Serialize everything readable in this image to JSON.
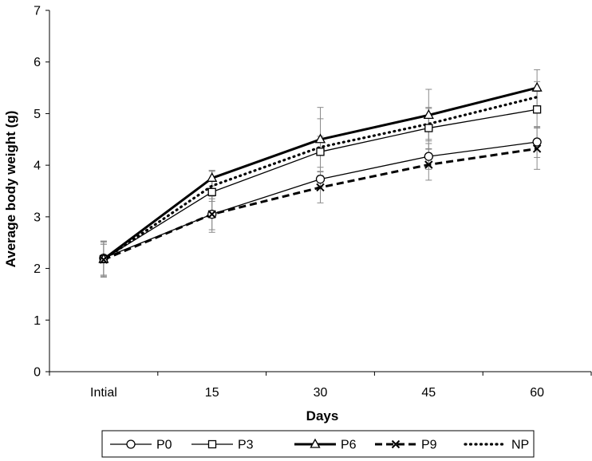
{
  "chart_data": {
    "type": "line",
    "title": "",
    "xlabel": "Days",
    "ylabel": "Average body weight (g)",
    "categories": [
      "Intial",
      "15",
      "30",
      "45",
      "60"
    ],
    "ylim": [
      0,
      7
    ],
    "yticks": [
      0,
      1,
      2,
      3,
      4,
      5,
      6,
      7
    ],
    "grid": false,
    "legend_position": "bottom",
    "series": [
      {
        "name": "P0",
        "marker": "circle",
        "line": "solid-thin",
        "values": [
          2.2,
          3.05,
          3.73,
          4.17,
          4.45
        ],
        "errors": [
          0.33,
          0.35,
          0.15,
          0.25,
          0.3
        ]
      },
      {
        "name": "P3",
        "marker": "square",
        "line": "solid-thin",
        "values": [
          2.18,
          3.48,
          4.26,
          4.72,
          5.08
        ],
        "errors": [
          0.33,
          0.4,
          0.3,
          0.4,
          0.35
        ]
      },
      {
        "name": "P6",
        "marker": "triangle",
        "line": "solid-thick",
        "values": [
          2.18,
          3.75,
          4.5,
          4.97,
          5.5
        ],
        "errors": [
          0.35,
          0.15,
          0.62,
          0.5,
          0.35
        ]
      },
      {
        "name": "P9",
        "marker": "x",
        "line": "dashed-thick",
        "values": [
          2.17,
          3.05,
          3.57,
          4.01,
          4.32
        ],
        "errors": [
          0.3,
          0.3,
          0.3,
          0.3,
          0.4
        ]
      },
      {
        "name": "NP",
        "marker": "none",
        "line": "dotted-thick",
        "values": [
          2.17,
          3.6,
          4.35,
          4.8,
          5.32
        ],
        "errors": [
          0.3,
          0.3,
          0.55,
          0.3,
          0.3
        ]
      }
    ]
  }
}
